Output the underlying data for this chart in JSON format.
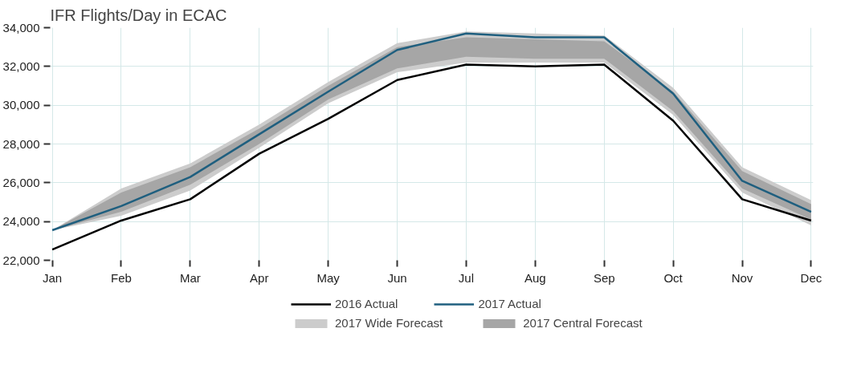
{
  "chart_data": {
    "type": "line",
    "title": "IFR Flights/Day in ECAC",
    "categories": [
      "Jan",
      "Feb",
      "Mar",
      "Apr",
      "May",
      "Jun",
      "Jul",
      "Aug",
      "Sep",
      "Oct",
      "Nov",
      "Dec"
    ],
    "series": [
      {
        "name": "2017 Wide Forecast",
        "type": "area",
        "color": "#cccccc",
        "values": [
          null,
          null,
          null,
          null,
          null,
          null,
          null,
          null,
          null,
          null,
          null,
          null
        ],
        "lower": [
          23550,
          24300,
          25600,
          27800,
          30100,
          31700,
          32200,
          32200,
          32200,
          29500,
          25500,
          23800
        ],
        "upper": [
          23550,
          25700,
          27000,
          29000,
          31200,
          33200,
          33800,
          33700,
          33600,
          30900,
          26800,
          25100
        ]
      },
      {
        "name": "2017 Central Forecast",
        "type": "area",
        "color": "#a6a6a6",
        "values": [
          null,
          null,
          null,
          null,
          null,
          null,
          null,
          null,
          null,
          null,
          null,
          null
        ],
        "lower": [
          23550,
          24500,
          25900,
          28000,
          30300,
          31900,
          32500,
          32400,
          32400,
          29700,
          25700,
          24100
        ],
        "upper": [
          23550,
          25500,
          26800,
          28800,
          31000,
          33000,
          33500,
          33400,
          33300,
          30700,
          26600,
          24900
        ]
      },
      {
        "name": "2016 Actual",
        "color": "#000000",
        "values": [
          22550,
          24050,
          25150,
          27500,
          29300,
          31300,
          32100,
          32000,
          32100,
          29200,
          25150,
          24050
        ]
      },
      {
        "name": "2017 Actual",
        "color": "#1f5f7f",
        "values": [
          23550,
          24800,
          26300,
          28500,
          30700,
          32850,
          33700,
          33500,
          33500,
          30600,
          26100,
          24500
        ]
      }
    ],
    "ylim": [
      22000,
      34000
    ],
    "yticks": [
      {
        "value": 22000,
        "label": "22,000"
      },
      {
        "value": 24000,
        "label": "24,000"
      },
      {
        "value": 26000,
        "label": "26,000"
      },
      {
        "value": 28000,
        "label": "28,000"
      },
      {
        "value": 30000,
        "label": "30,000"
      },
      {
        "value": 32000,
        "label": "32,000"
      },
      {
        "value": 34000,
        "label": "34,000"
      }
    ],
    "grid": true,
    "legend": "bottom",
    "line_style": "solid",
    "marker": "none"
  }
}
